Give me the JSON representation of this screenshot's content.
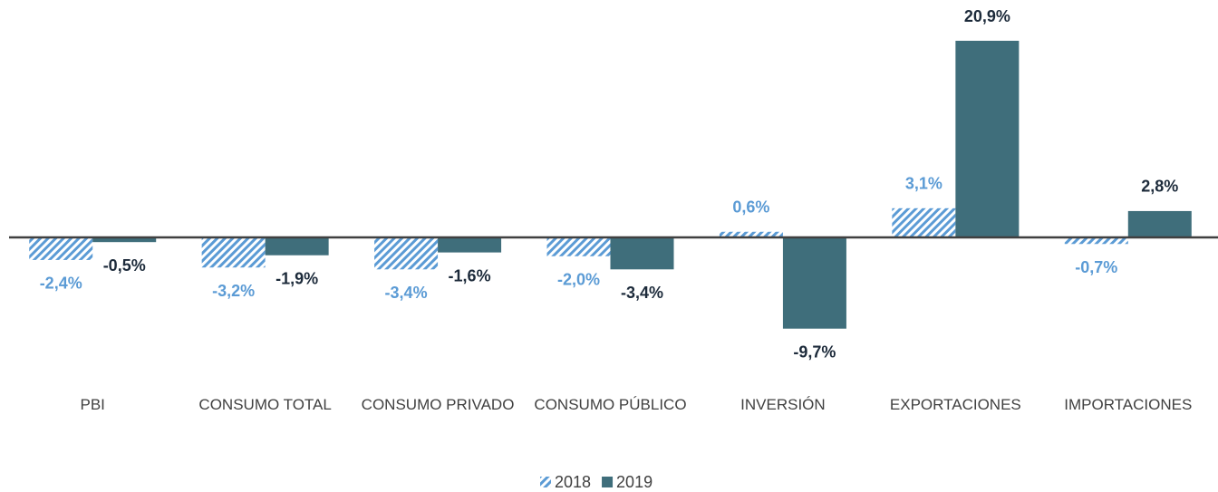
{
  "chart_data": {
    "type": "bar",
    "categories": [
      "PBI",
      "CONSUMO TOTAL",
      "CONSUMO PRIVADO",
      "CONSUMO PÚBLICO",
      "INVERSIÓN",
      "EXPORTACIONES",
      "IMPORTACIONES"
    ],
    "series": [
      {
        "name": "2018",
        "color": "#5b9bd5",
        "pattern": "hatch",
        "label_color": "#5b9bd5",
        "values": [
          -2.4,
          -3.2,
          -3.4,
          -2.0,
          0.6,
          3.1,
          -0.7
        ],
        "value_labels": [
          "-2,4%",
          "-3,2%",
          "-3,4%",
          "-2,0%",
          "0,6%",
          "3,1%",
          "-0,7%"
        ]
      },
      {
        "name": "2019",
        "color": "#3f6e7b",
        "pattern": "solid",
        "label_color": "#1c2a3a",
        "values": [
          -0.5,
          -1.9,
          -1.6,
          -3.4,
          -9.7,
          20.9,
          2.8
        ],
        "value_labels": [
          "-0,5%",
          "-1,9%",
          "-1,6%",
          "-3,4%",
          "-9,7%",
          "20,9%",
          "2,8%"
        ]
      }
    ],
    "legend": "bottom"
  }
}
